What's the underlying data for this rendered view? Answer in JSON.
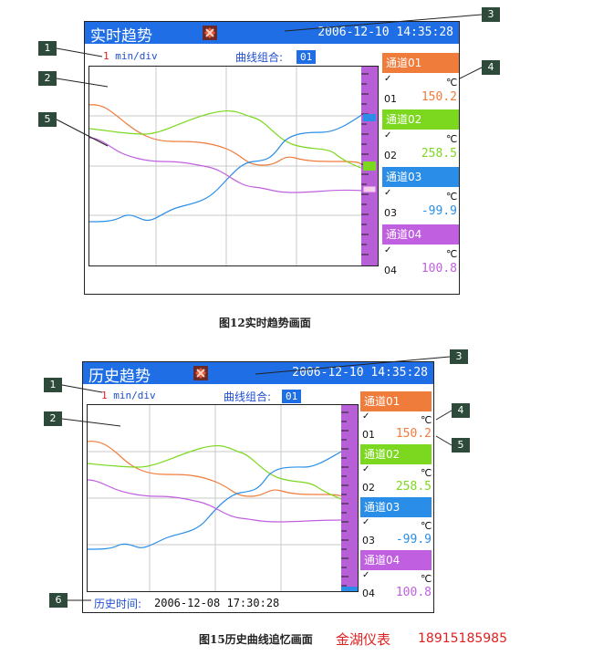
{
  "screen1": {
    "title": "实时趋势",
    "datetime": "2006-12-10  14:35:28",
    "scale_num": "1",
    "scale_unit": " min/div",
    "combo_label": "曲线组合:",
    "combo_value": "01",
    "channels": [
      {
        "label": "通道01",
        "check": "✓",
        "unit": "℃",
        "id": "01",
        "value": "150.2",
        "color": "#f07c3c"
      },
      {
        "label": "通道02",
        "check": "✓",
        "unit": "℃",
        "id": "02",
        "value": "258.5",
        "color": "#7cd81e"
      },
      {
        "label": "通道03",
        "check": "✓",
        "unit": "℃",
        "id": "03",
        "value": "-99.9",
        "color": "#2a8ee8"
      },
      {
        "label": "通道04",
        "check": "✓",
        "unit": "℃",
        "id": "04",
        "value": "100.8",
        "color": "#c060e0"
      }
    ],
    "caption": "图12实时趋势画面"
  },
  "screen2": {
    "title": "历史趋势",
    "datetime": "2006-12-10  14:35:28",
    "scale_num": "1",
    "scale_unit": " min/div",
    "combo_label": "曲线组合:",
    "combo_value": "01",
    "history_label": "历史时间:",
    "history_value": "2006-12-08   17:30:28",
    "channels": [
      {
        "label": "通道01",
        "check": "✓",
        "unit": "℃",
        "id": "01",
        "value": "150.2",
        "color": "#f07c3c"
      },
      {
        "label": "通道02",
        "check": "✓",
        "unit": "℃",
        "id": "02",
        "value": "258.5",
        "color": "#7cd81e"
      },
      {
        "label": "通道03",
        "check": "✓",
        "unit": "℃",
        "id": "03",
        "value": "-99.9",
        "color": "#2a8ee8"
      },
      {
        "label": "通道04",
        "check": "✓",
        "unit": "℃",
        "id": "04",
        "value": "100.8",
        "color": "#c060e0"
      }
    ],
    "caption": "图15历史曲线追忆画面"
  },
  "footer": {
    "brand": "金湖仪表",
    "phone": "18915185985"
  },
  "callouts_top": [
    "1",
    "2",
    "3",
    "4",
    "5"
  ],
  "callouts_bottom": [
    "1",
    "2",
    "3",
    "4",
    "5",
    "6"
  ],
  "colors": {
    "titlebar": "#1f6ee6",
    "ruler": "#b65fd6",
    "brand_red": "#e02020"
  }
}
